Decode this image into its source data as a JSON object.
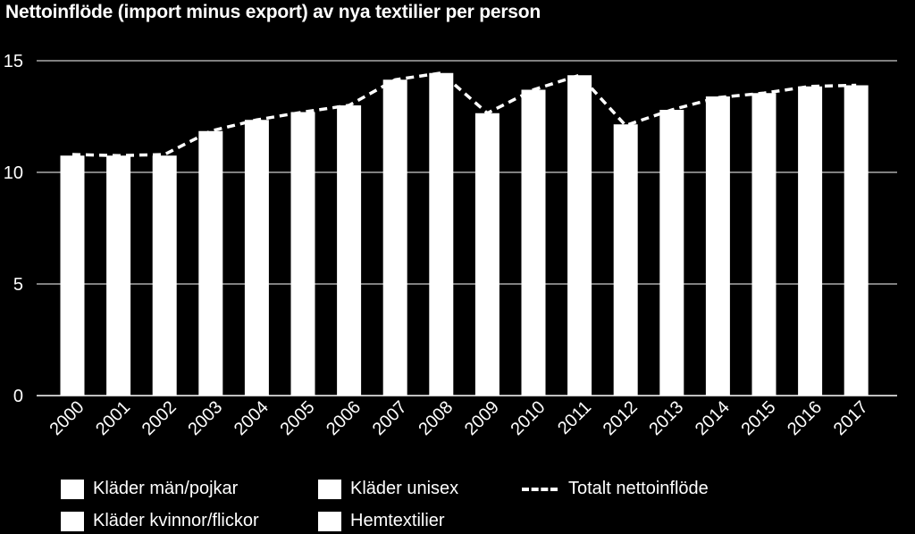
{
  "chart_data": {
    "type": "bar",
    "title": "Nettoinflöde (import minus export) av nya textilier per person",
    "xlabel": "",
    "ylabel": "",
    "ylim": [
      0,
      15
    ],
    "yticks": [
      0,
      5,
      10,
      15
    ],
    "grid": true,
    "categories": [
      "2000",
      "2001",
      "2002",
      "2003",
      "2004",
      "2005",
      "2006",
      "2007",
      "2008",
      "2009",
      "2010",
      "2011",
      "2012",
      "2013",
      "2014",
      "2015",
      "2016",
      "2017"
    ],
    "series": [
      {
        "name": "Totalt nettoinflöde",
        "kind": "line-dashed",
        "values": [
          10.8,
          10.75,
          10.8,
          11.85,
          12.35,
          12.7,
          13.0,
          14.15,
          14.45,
          12.65,
          13.7,
          14.35,
          12.1,
          12.8,
          13.35,
          13.55,
          13.85,
          13.9
        ]
      }
    ],
    "bar_values": [
      10.75,
      10.75,
      10.75,
      11.85,
      12.35,
      12.7,
      13.0,
      14.15,
      14.45,
      12.65,
      13.7,
      14.35,
      12.15,
      12.8,
      13.4,
      13.55,
      13.85,
      13.9
    ],
    "legend_placement": "bottom",
    "colors": {
      "background": "#000000",
      "bars": "#ffffff",
      "line": "#ffffff",
      "grid": "#ffffff"
    }
  },
  "legend": {
    "items": [
      {
        "label": "Kläder män/pojkar",
        "icon": "swatch"
      },
      {
        "label": "Kläder unisex",
        "icon": "swatch"
      },
      {
        "label": "Totalt nettoinflöde",
        "icon": "dashed-line"
      },
      {
        "label": "Kläder kvinnor/flickor",
        "icon": "swatch"
      },
      {
        "label": "Hemtextilier",
        "icon": "swatch"
      }
    ]
  }
}
